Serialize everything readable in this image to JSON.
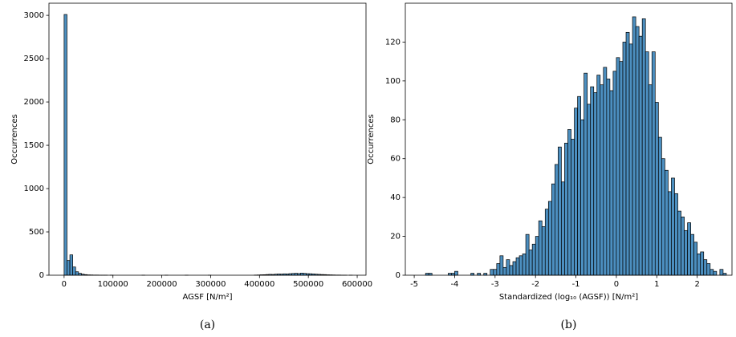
{
  "chart_data": [
    {
      "type": "histogram",
      "caption": "(a)",
      "xlabel": "AGSF [N/m²]",
      "ylabel": "Occurrences",
      "color": "#4c8fc0",
      "bins": [
        0,
        5900,
        11800,
        17700,
        23600,
        29500,
        35400,
        41300,
        47200,
        53100,
        59000,
        64900,
        70800,
        76700,
        82600,
        88500,
        94400,
        100300,
        106200,
        112100,
        118000,
        123900,
        129800,
        135700,
        141600,
        147500,
        153400,
        159300,
        165200,
        171100,
        177000,
        182900,
        188800,
        194700,
        200600,
        206500,
        212400,
        218300,
        224200,
        230100,
        236000,
        241900,
        247800,
        253700,
        259600,
        265500,
        271400,
        277300,
        283200,
        289100,
        295000,
        300900,
        306800,
        312700,
        318600,
        324500,
        330400,
        336300,
        342200,
        348100,
        354000,
        359900,
        365800,
        371700,
        377600,
        383500,
        389400,
        395300,
        401200,
        407100,
        413000,
        418900,
        424800,
        430700,
        436600,
        442500,
        448400,
        454300,
        460200,
        466100,
        472000,
        477900,
        483800,
        489700,
        495600,
        501500,
        507400,
        513300,
        519200,
        525100,
        531000,
        536900,
        542800,
        548700,
        554600,
        560500,
        566400,
        572300,
        578200,
        584100,
        590000
      ],
      "values": [
        3010,
        170,
        235,
        95,
        40,
        22,
        12,
        7,
        4,
        3,
        2,
        2,
        1,
        1,
        1,
        0,
        1,
        0,
        0,
        0,
        0,
        0,
        0,
        0,
        0,
        0,
        0,
        1,
        0,
        0,
        0,
        0,
        0,
        0,
        0,
        1,
        0,
        0,
        0,
        0,
        0,
        0,
        1,
        0,
        0,
        0,
        0,
        0,
        0,
        0,
        1,
        0,
        0,
        0,
        0,
        0,
        0,
        0,
        0,
        0,
        0,
        0,
        0,
        0,
        0,
        0,
        2,
        3,
        5,
        6,
        8,
        10,
        9,
        12,
        14,
        13,
        16,
        15,
        18,
        20,
        22,
        19,
        24,
        21,
        18,
        17,
        15,
        12,
        10,
        8,
        7,
        5,
        4,
        3,
        2,
        2,
        1,
        1,
        0,
        1
      ],
      "xlim": [
        -31000,
        618000
      ],
      "ylim": [
        0,
        3140
      ],
      "xticks": [
        0,
        100000,
        200000,
        300000,
        400000,
        500000,
        600000
      ],
      "yticks": [
        0,
        500,
        1000,
        1500,
        2000,
        2500,
        3000
      ]
    },
    {
      "type": "histogram",
      "caption": "(b)",
      "xlabel": "Standardized (log₁₀ (AGSF)) [N/m²]",
      "ylabel": "Occurrences",
      "color": "#4c8fc0",
      "bins": [
        -4.8,
        -4.72,
        -4.64,
        -4.56,
        -4.48,
        -4.4,
        -4.32,
        -4.24,
        -4.16,
        -4.08,
        -4,
        -3.92,
        -3.84,
        -3.76,
        -3.68,
        -3.6,
        -3.52,
        -3.44,
        -3.36,
        -3.28,
        -3.2,
        -3.12,
        -3.04,
        -2.96,
        -2.88,
        -2.8,
        -2.72,
        -2.64,
        -2.56,
        -2.48,
        -2.4,
        -2.32,
        -2.24,
        -2.16,
        -2.08,
        -2,
        -1.92,
        -1.84,
        -1.76,
        -1.68,
        -1.6,
        -1.52,
        -1.44,
        -1.36,
        -1.28,
        -1.2,
        -1.12,
        -1.04,
        -0.96,
        -0.88,
        -0.8,
        -0.72,
        -0.64,
        -0.56,
        -0.48,
        -0.4,
        -0.32,
        -0.24,
        -0.16,
        -0.08,
        0,
        0.08,
        0.16,
        0.24,
        0.32,
        0.4,
        0.48,
        0.56,
        0.64,
        0.72,
        0.8,
        0.88,
        0.96,
        1.04,
        1.12,
        1.2,
        1.28,
        1.36,
        1.44,
        1.52,
        1.6,
        1.68,
        1.76,
        1.84,
        1.92,
        2,
        2.08,
        2.16,
        2.24,
        2.32,
        2.4,
        2.48,
        2.56,
        2.64,
        2.72,
        2.8
      ],
      "values": [
        0,
        1,
        1,
        0,
        0,
        0,
        0,
        0,
        1,
        1,
        2,
        0,
        0,
        0,
        0,
        1,
        0,
        1,
        0,
        1,
        0,
        3,
        3,
        6,
        10,
        4,
        8,
        5,
        7,
        9,
        10,
        11,
        21,
        13,
        16,
        20,
        28,
        25,
        34,
        38,
        47,
        57,
        66,
        48,
        68,
        75,
        70,
        86,
        92,
        80,
        104,
        88,
        97,
        94,
        103,
        98,
        107,
        101,
        95,
        105,
        112,
        110,
        120,
        125,
        119,
        133,
        128,
        123,
        132,
        115,
        98,
        115,
        89,
        71,
        60,
        54,
        43,
        50,
        42,
        33,
        30,
        23,
        27,
        21,
        17,
        11,
        12,
        8,
        6,
        3,
        2,
        0,
        3,
        1,
        0
      ],
      "xlim": [
        -5.22,
        2.86
      ],
      "ylim": [
        0,
        140
      ],
      "xticks": [
        -5,
        -4,
        -3,
        -2,
        -1,
        0,
        1,
        2
      ],
      "yticks": [
        0,
        20,
        40,
        60,
        80,
        100,
        120
      ]
    }
  ]
}
